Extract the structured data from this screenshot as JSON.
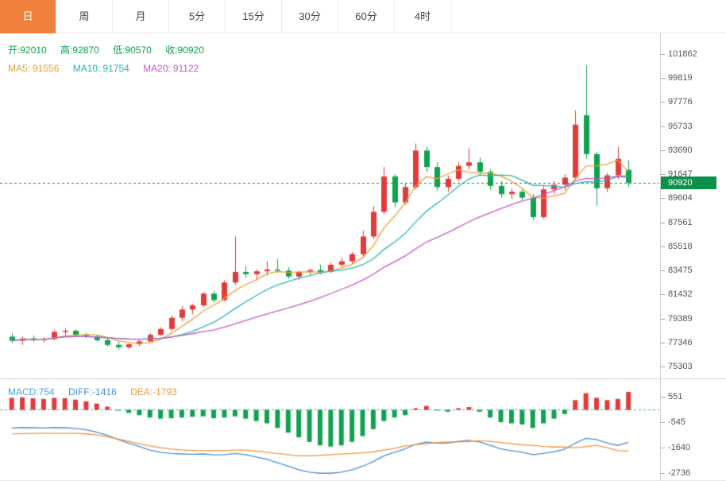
{
  "toolbar": {
    "tabs": [
      {
        "label": "日",
        "active": true
      },
      {
        "label": "周",
        "active": false
      },
      {
        "label": "月",
        "active": false
      },
      {
        "label": "5分",
        "active": false
      },
      {
        "label": "15分",
        "active": false
      },
      {
        "label": "30分",
        "active": false
      },
      {
        "label": "60分",
        "active": false
      },
      {
        "label": "4时",
        "active": false
      }
    ]
  },
  "readout": {
    "open_label": "开:",
    "open": "92010",
    "high_label": "高:",
    "high": "92870",
    "low_label": "低:",
    "low": "90570",
    "close_label": "收:",
    "close": "90920"
  },
  "ma_readout": {
    "ma5_label": "MA5:",
    "ma5": "91556",
    "ma10_label": "MA10:",
    "ma10": "91754",
    "ma20_label": "MA20:",
    "ma20": "91122"
  },
  "macd_readout": {
    "macd_label": "MACD:",
    "macd": "754",
    "diff_label": "DIFF:",
    "diff": "-1416",
    "dea_label": "DEA:",
    "dea": "-1793"
  },
  "last_price": "90920",
  "price_axis_labels": [
    101862,
    99819,
    97776,
    95733,
    93690,
    91647,
    89604,
    87561,
    85518,
    83475,
    81432,
    79389,
    77346,
    75303
  ],
  "macd_axis_labels": [
    551,
    -545,
    -1640,
    -2736
  ],
  "ui": {
    "tab_active_bg": "#ef813c",
    "ohlc_text": "#0fa04e"
  },
  "chart_data": {
    "type": "candlestick",
    "title": "",
    "grid": false,
    "legend_position": "top-left",
    "price_range": [
      74300,
      103600
    ],
    "price_ticks": [
      101862,
      99819,
      97776,
      95733,
      93690,
      91647,
      89604,
      87561,
      85518,
      83475,
      81432,
      79389,
      77346,
      75303
    ],
    "last_price": 90920,
    "last_candle": {
      "open": 92010,
      "high": 92870,
      "low": 90570,
      "close": 90920
    },
    "ma_periods": [
      5,
      10,
      20
    ],
    "ma_latest": {
      "ma5": 91556,
      "ma10": 91754,
      "ma20": 91122
    },
    "candles": [
      [
        77850,
        78150,
        77300,
        77500
      ],
      [
        77500,
        77850,
        77150,
        77700
      ],
      [
        77700,
        77950,
        77400,
        77550
      ],
      [
        77550,
        77800,
        77350,
        77650
      ],
      [
        77650,
        78400,
        77550,
        78250
      ],
      [
        78250,
        78550,
        77950,
        78350
      ],
      [
        78350,
        78450,
        77850,
        78000
      ],
      [
        78000,
        78200,
        77700,
        77850
      ],
      [
        77850,
        78000,
        77400,
        77550
      ],
      [
        77550,
        77750,
        77000,
        77150
      ],
      [
        77150,
        77400,
        76750,
        76950
      ],
      [
        76950,
        77300,
        76800,
        77200
      ],
      [
        77200,
        77550,
        77050,
        77450
      ],
      [
        77450,
        78150,
        77350,
        78000
      ],
      [
        78000,
        78650,
        77900,
        78500
      ],
      [
        78500,
        79650,
        78350,
        79450
      ],
      [
        79450,
        80450,
        79150,
        80150
      ],
      [
        80150,
        80650,
        79750,
        80500
      ],
      [
        80500,
        81650,
        80350,
        81500
      ],
      [
        81500,
        81750,
        80750,
        80950
      ],
      [
        80950,
        82650,
        80850,
        82450
      ],
      [
        82450,
        86350,
        82250,
        83350
      ],
      [
        83350,
        83850,
        82850,
        83150
      ],
      [
        83150,
        83550,
        82650,
        83400
      ],
      [
        83400,
        84250,
        83050,
        83550
      ],
      [
        83550,
        84450,
        83250,
        83450
      ],
      [
        83450,
        83750,
        82750,
        82950
      ],
      [
        82950,
        83450,
        82650,
        83350
      ],
      [
        83350,
        83650,
        83050,
        83500
      ],
      [
        83500,
        83950,
        83150,
        83350
      ],
      [
        83350,
        84150,
        83250,
        83950
      ],
      [
        83950,
        84550,
        83650,
        84250
      ],
      [
        84250,
        85050,
        83950,
        84850
      ],
      [
        84850,
        86850,
        84550,
        86350
      ],
      [
        86350,
        88950,
        86150,
        88450
      ],
      [
        88450,
        92250,
        88250,
        91450
      ],
      [
        91450,
        91650,
        88850,
        89250
      ],
      [
        89250,
        90850,
        89050,
        90550
      ],
      [
        90550,
        94250,
        90350,
        93650
      ],
      [
        93650,
        93950,
        91850,
        92250
      ],
      [
        92250,
        92650,
        90250,
        90550
      ],
      [
        90550,
        91550,
        90150,
        91250
      ],
      [
        91250,
        92650,
        91050,
        92350
      ],
      [
        92350,
        93850,
        92050,
        92650
      ],
      [
        92650,
        93050,
        91550,
        91850
      ],
      [
        91850,
        92050,
        90350,
        90650
      ],
      [
        90650,
        91050,
        89650,
        89950
      ],
      [
        89950,
        90450,
        89550,
        90150
      ],
      [
        90150,
        90350,
        89450,
        89650
      ],
      [
        89650,
        89950,
        87750,
        88000
      ],
      [
        88000,
        90650,
        87850,
        90350
      ],
      [
        90350,
        91050,
        89950,
        90750
      ],
      [
        90750,
        91650,
        90250,
        91350
      ],
      [
        91350,
        97050,
        91150,
        95850
      ],
      [
        96650,
        100900,
        92950,
        93350
      ],
      [
        93350,
        93550,
        88950,
        90450
      ],
      [
        90450,
        91750,
        90150,
        91550
      ],
      [
        91550,
        93950,
        91250,
        92950
      ],
      [
        92010,
        92870,
        90570,
        90920
      ]
    ],
    "macd": {
      "range": [
        -3050,
        1300
      ],
      "axis_ticks": [
        551,
        -545,
        -1640,
        -2736
      ],
      "latest": {
        "macd": 754,
        "diff": -1416,
        "dea": -1793
      },
      "histogram": [
        500,
        520,
        480,
        450,
        500,
        480,
        420,
        350,
        250,
        120,
        -50,
        -150,
        -250,
        -350,
        -400,
        -380,
        -350,
        -320,
        -300,
        -380,
        -350,
        -300,
        -400,
        -500,
        -600,
        -800,
        -1000,
        -1200,
        -1400,
        -1550,
        -1600,
        -1550,
        -1400,
        -1150,
        -850,
        -500,
        -350,
        -250,
        50,
        150,
        -50,
        -100,
        50,
        100,
        -100,
        -350,
        -550,
        -600,
        -650,
        -800,
        -600,
        -400,
        -200,
        400,
        700,
        500,
        400,
        450,
        754
      ],
      "diff": [
        -800,
        -780,
        -790,
        -800,
        -780,
        -790,
        -820,
        -880,
        -980,
        -1120,
        -1300,
        -1450,
        -1600,
        -1750,
        -1850,
        -1900,
        -1920,
        -1930,
        -1920,
        -1960,
        -1950,
        -1900,
        -1950,
        -2050,
        -2150,
        -2300,
        -2450,
        -2600,
        -2700,
        -2750,
        -2750,
        -2700,
        -2600,
        -2450,
        -2250,
        -2000,
        -1850,
        -1700,
        -1500,
        -1400,
        -1450,
        -1450,
        -1380,
        -1330,
        -1400,
        -1550,
        -1700,
        -1780,
        -1850,
        -1950,
        -1900,
        -1820,
        -1720,
        -1450,
        -1250,
        -1300,
        -1450,
        -1550,
        -1416
      ],
      "dea": [
        -1050,
        -1040,
        -1030,
        -1025,
        -1030,
        -1030,
        -1030,
        -1055,
        -1105,
        -1180,
        -1275,
        -1375,
        -1475,
        -1575,
        -1650,
        -1710,
        -1745,
        -1770,
        -1770,
        -1770,
        -1775,
        -1750,
        -1750,
        -1800,
        -1850,
        -1900,
        -1950,
        -2000,
        -2000,
        -1975,
        -1950,
        -1925,
        -1900,
        -1875,
        -1825,
        -1750,
        -1675,
        -1575,
        -1525,
        -1475,
        -1425,
        -1400,
        -1405,
        -1380,
        -1350,
        -1375,
        -1425,
        -1480,
        -1525,
        -1550,
        -1600,
        -1620,
        -1620,
        -1650,
        -1600,
        -1550,
        -1650,
        -1775,
        -1793
      ]
    },
    "colors": {
      "up": "#e23b3b",
      "down": "#10a34e",
      "ma5": "#e6a23c",
      "ma10": "#2db3b3",
      "ma20": "#c45bc5",
      "diff": "#4a90d9",
      "dea": "#f0973c",
      "macd_text": "#4ea3d8",
      "last_price": "#0c9148",
      "zero_line": "#2fb3a9"
    }
  }
}
